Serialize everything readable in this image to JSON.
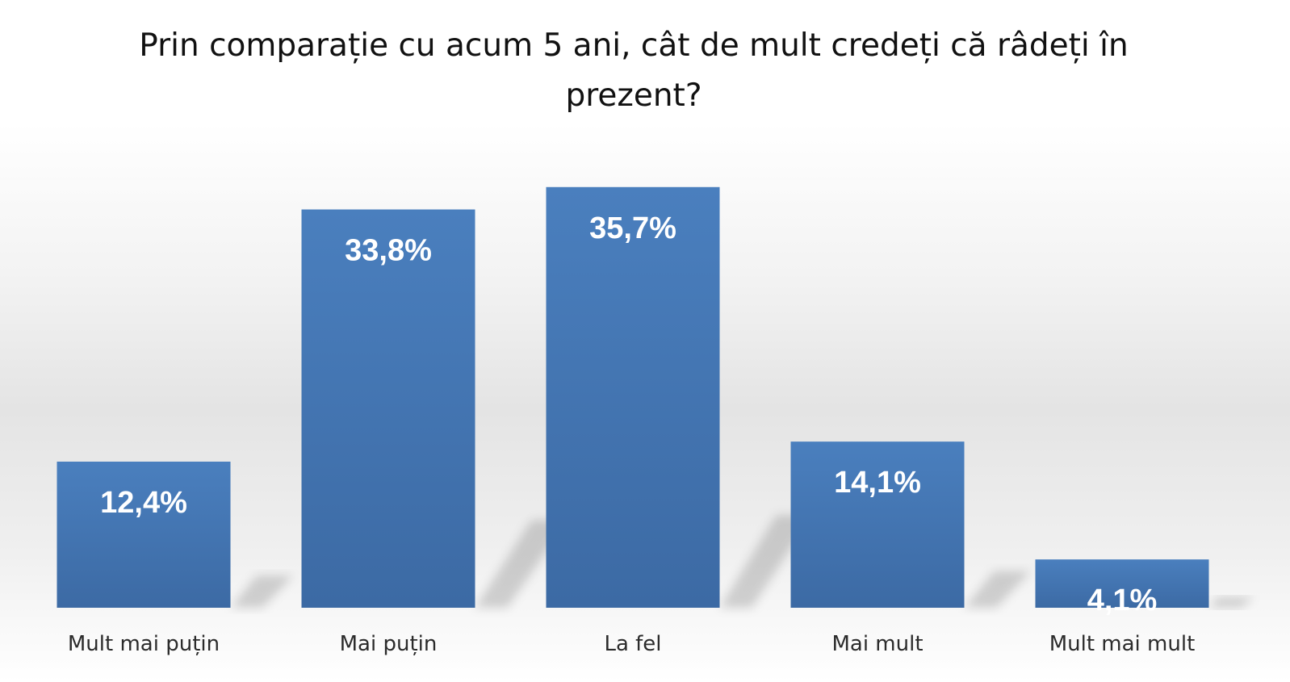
{
  "chart_data": {
    "type": "bar",
    "title": "Prin comparație cu acum 5 ani, cât de mult credeți că râdeți în prezent?",
    "categories": [
      "Mult mai puțin",
      "Mai puțin",
      "La fel",
      "Mai mult",
      "Mult mai mult"
    ],
    "values": [
      12.4,
      33.8,
      35.7,
      14.1,
      4.1
    ],
    "data_labels": [
      "12,4%",
      "33,8%",
      "35,7%",
      "14,1%",
      "4,1%"
    ],
    "xlabel": "",
    "ylabel": "",
    "ylim": [
      0,
      40
    ],
    "grid": false,
    "legend": "none",
    "bar_color": "#4a7fbe",
    "bar_color_dark": "#3c6aa4",
    "label_color": "#ffffff"
  }
}
